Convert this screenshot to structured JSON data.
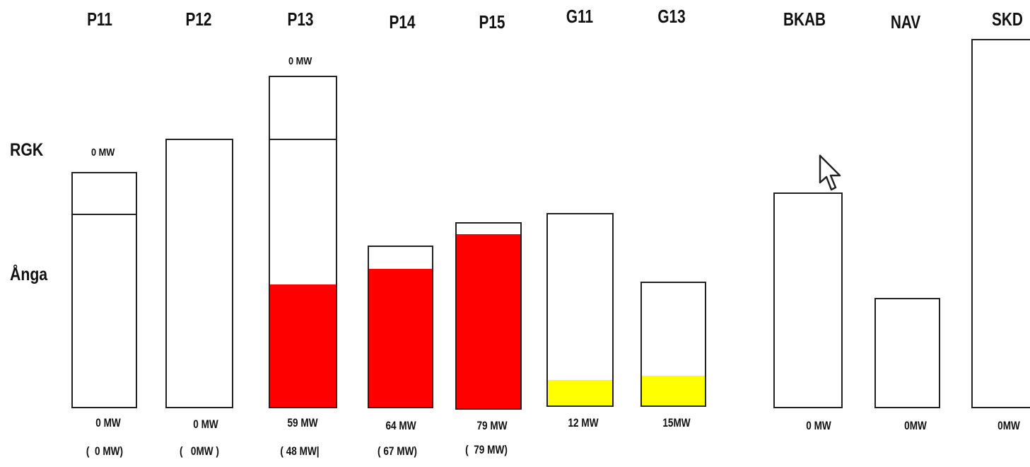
{
  "row_labels": {
    "rgk": "RGK",
    "anga": "Ånga"
  },
  "colors": {
    "active": "#ff0000",
    "secondary": "#ffff00",
    "outline": "#222222"
  },
  "units": [
    {
      "id": "p11",
      "title": "P11",
      "top_label": "0 MW",
      "value": "0 MW",
      "paren_value": "0 MW",
      "fill_color": "none"
    },
    {
      "id": "p12",
      "title": "P12",
      "top_label": "",
      "value": "0 MW",
      "paren_value": "0MW",
      "fill_color": "none"
    },
    {
      "id": "p13",
      "title": "P13",
      "top_label": "0 MW",
      "value": "59 MW",
      "paren_value": "48 MW",
      "fill_color": "#ff0000"
    },
    {
      "id": "p14",
      "title": "P14",
      "top_label": "",
      "value": "64 MW",
      "paren_value": "67 MW",
      "fill_color": "#ff0000"
    },
    {
      "id": "p15",
      "title": "P15",
      "top_label": "",
      "value": "79 MW",
      "paren_value": "79 MW",
      "fill_color": "#ff0000"
    },
    {
      "id": "g11",
      "title": "G11",
      "top_label": "",
      "value": "12 MW",
      "paren_value": "",
      "fill_color": "#ffff00"
    },
    {
      "id": "g13",
      "title": "G13",
      "top_label": "",
      "value": "15MW",
      "paren_value": "",
      "fill_color": "#ffff00"
    },
    {
      "id": "bkab",
      "title": "BKAB",
      "top_label": "",
      "value": "0 MW",
      "paren_value": "",
      "fill_color": "none"
    },
    {
      "id": "nav",
      "title": "NAV",
      "top_label": "",
      "value": "0MW",
      "paren_value": "",
      "fill_color": "none"
    },
    {
      "id": "skd",
      "title": "SKD",
      "top_label": "",
      "value": "0MW",
      "paren_value": "",
      "fill_color": "none"
    }
  ],
  "cursor_icon": "arrow-cursor-icon"
}
